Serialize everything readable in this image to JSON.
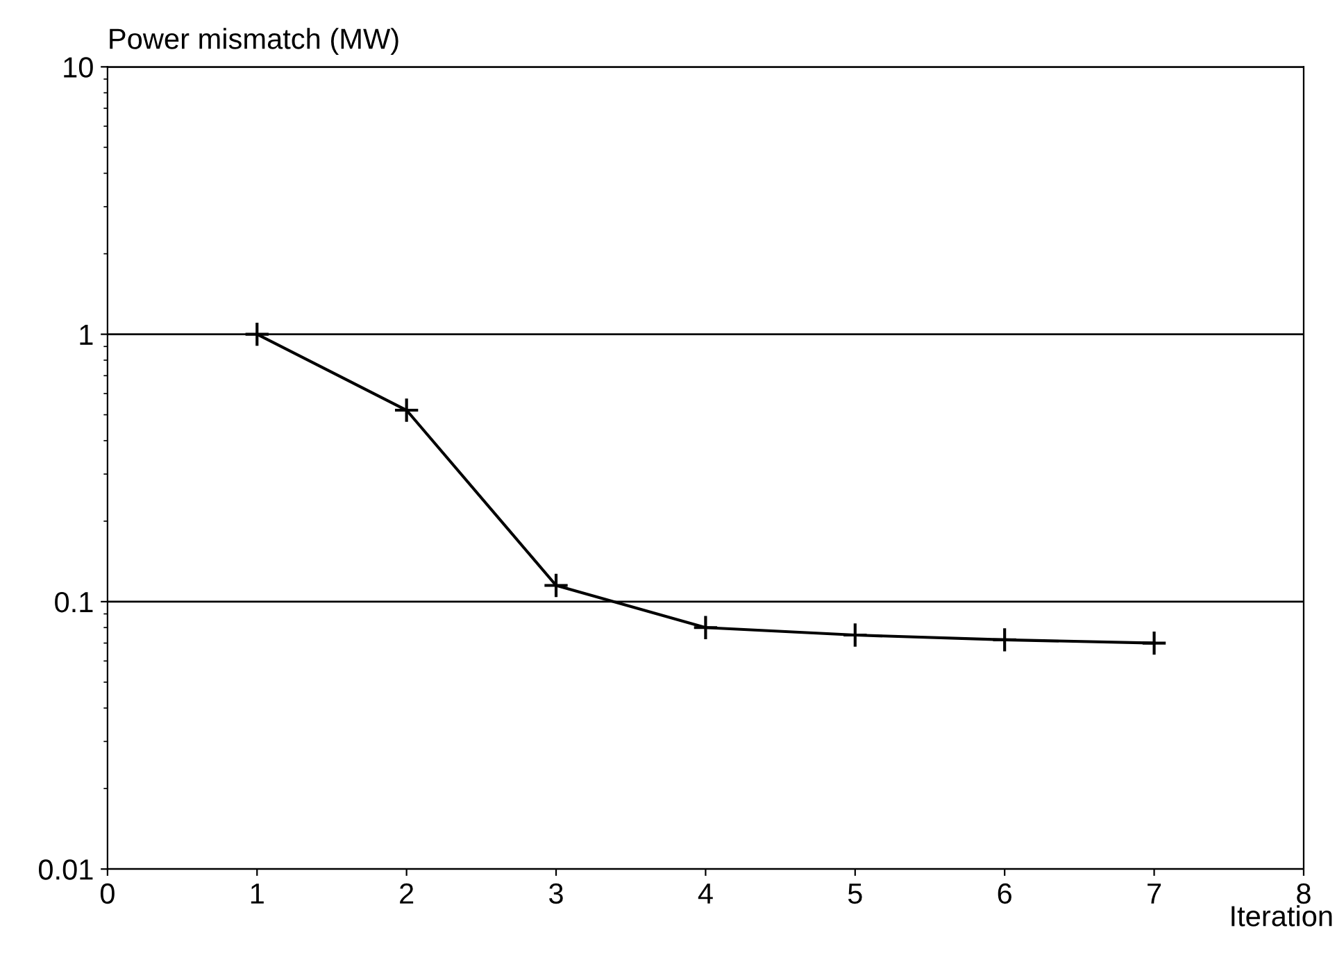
{
  "chart_data": {
    "type": "line",
    "ylabel": "Power mismatch (MW)",
    "xlabel": "Iteration",
    "x": [
      1,
      2,
      3,
      4,
      5,
      6,
      7
    ],
    "series": [
      {
        "color": "#000000",
        "values": [
          1.0,
          0.52,
          0.115,
          0.08,
          0.075,
          0.072,
          0.07
        ]
      }
    ],
    "xlim": [
      0,
      8
    ],
    "xticks": [
      0,
      1,
      2,
      3,
      4,
      5,
      6,
      7,
      8
    ],
    "ylim": [
      0.01,
      10
    ],
    "yticks": [
      0.01,
      0.1,
      1,
      10
    ],
    "log": "y",
    "grid": "y",
    "marker": "cross",
    "line_style": "solid"
  }
}
